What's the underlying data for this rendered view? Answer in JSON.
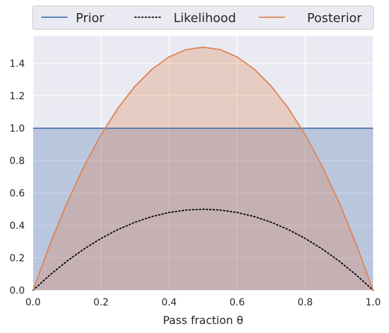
{
  "chart_data": {
    "type": "line",
    "xlabel": "Pass fraction θ",
    "xlim": [
      0,
      1
    ],
    "ylim": [
      0,
      1.57
    ],
    "x_ticks": [
      "0.0",
      "0.2",
      "0.4",
      "0.6",
      "0.8",
      "1.0"
    ],
    "x_tick_values": [
      0,
      0.2,
      0.4,
      0.6,
      0.8,
      1.0
    ],
    "y_ticks": [
      "0.0",
      "0.2",
      "0.4",
      "0.6",
      "0.8",
      "1.0",
      "1.2",
      "1.4"
    ],
    "y_tick_values": [
      0,
      0.2,
      0.4,
      0.6,
      0.8,
      1.0,
      1.2,
      1.4
    ],
    "grid": true,
    "legend_placement": "top, outside plot, horizontal",
    "x": [
      0,
      0.05,
      0.1,
      0.15,
      0.2,
      0.25,
      0.3,
      0.35,
      0.4,
      0.45,
      0.5,
      0.55,
      0.6,
      0.65,
      0.7,
      0.75,
      0.8,
      0.85,
      0.9,
      0.95,
      1.0
    ],
    "series": [
      {
        "name": "Prior",
        "color": "#4c72b0",
        "style": "solid",
        "filled": true,
        "values": [
          1.0,
          1.0,
          1.0,
          1.0,
          1.0,
          1.0,
          1.0,
          1.0,
          1.0,
          1.0,
          1.0,
          1.0,
          1.0,
          1.0,
          1.0,
          1.0,
          1.0,
          1.0,
          1.0,
          1.0,
          1.0
        ]
      },
      {
        "name": "Likelihood",
        "color": "#000000",
        "style": "dotted",
        "filled": false,
        "values": [
          0,
          0.095,
          0.18,
          0.255,
          0.32,
          0.375,
          0.42,
          0.455,
          0.48,
          0.495,
          0.5,
          0.495,
          0.48,
          0.455,
          0.42,
          0.375,
          0.32,
          0.255,
          0.18,
          0.095,
          0
        ]
      },
      {
        "name": "Posterior",
        "color": "#dd8452",
        "style": "solid",
        "filled": true,
        "values": [
          0,
          0.285,
          0.54,
          0.765,
          0.96,
          1.125,
          1.26,
          1.365,
          1.44,
          1.485,
          1.5,
          1.485,
          1.44,
          1.365,
          1.26,
          1.125,
          0.96,
          0.765,
          0.54,
          0.285,
          0
        ]
      }
    ]
  }
}
